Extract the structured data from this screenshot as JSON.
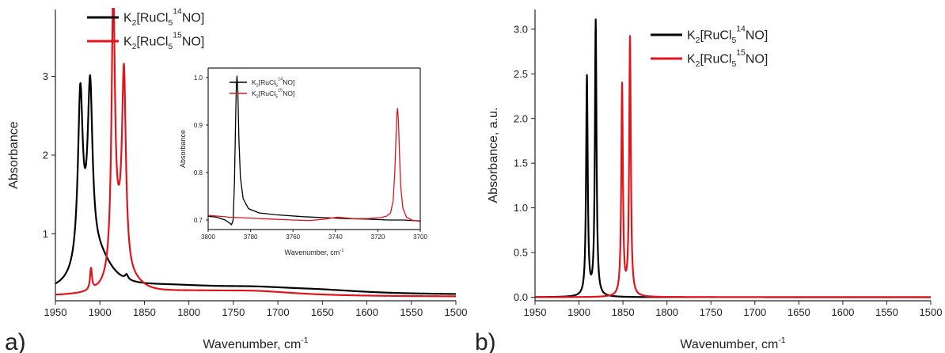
{
  "panels": {
    "a": {
      "label": "a)"
    },
    "b": {
      "label": "b)"
    }
  },
  "colors": {
    "black_series": "#000000",
    "red_series": "#e0141b"
  },
  "chart_data": [
    {
      "id": "a-main",
      "type": "line",
      "title": "",
      "xlabel": "Wavenumber, cm",
      "xlabel_sup": "-1",
      "ylabel": "Absorbance",
      "xlim": [
        1950,
        1500
      ],
      "ylim": [
        0.15,
        3.85
      ],
      "xticks": [
        1950,
        1900,
        1850,
        1800,
        1750,
        1700,
        1650,
        1600,
        1550,
        1500
      ],
      "yticks": [
        1,
        2,
        3
      ],
      "legend": {
        "position": "top-left",
        "entries": [
          {
            "series": 0,
            "parts": [
              [
                "K",
                "n"
              ],
              [
                "2",
                "sub"
              ],
              [
                "[RuCl",
                "n"
              ],
              [
                "5",
                "sub"
              ],
              [
                "14",
                "sup"
              ],
              [
                "NO]",
                "n"
              ]
            ]
          },
          {
            "series": 1,
            "parts": [
              [
                "K",
                "n"
              ],
              [
                "2",
                "sub"
              ],
              [
                "[RuCl",
                "n"
              ],
              [
                "5",
                "sub"
              ],
              [
                "15",
                "sup"
              ],
              [
                "NO]",
                "n"
              ]
            ]
          }
        ]
      },
      "series": [
        {
          "name": "K2[RuCl5 14NO]",
          "color": "#000000",
          "baseline": 0.22,
          "peaks": [
            {
              "x": 1922,
              "h": 2.08,
              "w": 3.2
            },
            {
              "x": 1911,
              "h": 2.05,
              "w": 3.2
            },
            {
              "x": 1916,
              "h": 0.35,
              "w": 12
            },
            {
              "x": 1900,
              "h": 0.32,
              "w": 18
            },
            {
              "x": 1870,
              "h": 0.06,
              "w": 2
            },
            {
              "x": 1825,
              "h": 0.09,
              "w": 80
            },
            {
              "x": 1725,
              "h": 0.06,
              "w": 70
            },
            {
              "x": 1650,
              "h": 0.03,
              "w": 60
            }
          ]
        },
        {
          "name": "K2[RuCl5 15NO]",
          "color": "#e0141b",
          "baseline": 0.2,
          "peaks": [
            {
              "x": 1885,
              "h": 3.42,
              "w": 2.3
            },
            {
              "x": 1873,
              "h": 2.42,
              "w": 2.6
            },
            {
              "x": 1879,
              "h": 0.55,
              "w": 8
            },
            {
              "x": 1910,
              "h": 0.27,
              "w": 1.3
            },
            {
              "x": 1860,
              "h": 0.07,
              "w": 14
            },
            {
              "x": 1800,
              "h": 0.05,
              "w": 70
            },
            {
              "x": 1725,
              "h": 0.05,
              "w": 60
            }
          ]
        }
      ]
    },
    {
      "id": "a-inset",
      "type": "line",
      "title": "",
      "xlabel": "Wavenumber, cm",
      "xlabel_sup": "-1",
      "ylabel": "Absorbance",
      "xlim": [
        3800,
        3700
      ],
      "ylim": [
        0.68,
        1.02
      ],
      "xticks": [
        3800,
        3780,
        3760,
        3740,
        3720,
        3700
      ],
      "yticks": [
        0.7,
        0.8,
        0.9,
        1.0
      ],
      "ytick_labels": [
        "0.7",
        "0.8",
        "0.9",
        "1.0"
      ],
      "legend": {
        "position": "top-left",
        "entries": [
          {
            "series": 0,
            "parts": [
              [
                "K",
                "n"
              ],
              [
                "2",
                "sub"
              ],
              [
                "[RuCl",
                "n"
              ],
              [
                "5",
                "sub"
              ],
              [
                "14",
                "sup"
              ],
              [
                "NO]",
                "n"
              ]
            ]
          },
          {
            "series": 1,
            "parts": [
              [
                "K",
                "n"
              ],
              [
                "2",
                "sub"
              ],
              [
                "[RuCl",
                "n"
              ],
              [
                "5",
                "sub"
              ],
              [
                "15",
                "sup"
              ],
              [
                "NO]",
                "n"
              ]
            ]
          }
        ]
      },
      "series": [
        {
          "name": "K2[RuCl5 14NO]",
          "color": "#000000",
          "points": [
            [
              3800,
              0.708
            ],
            [
              3796,
              0.706
            ],
            [
              3792,
              0.7
            ],
            [
              3790,
              0.694
            ],
            [
              3789,
              0.69
            ],
            [
              3788.2,
              0.7
            ],
            [
              3787.6,
              0.78
            ],
            [
              3787.1,
              0.9
            ],
            [
              3786.7,
              0.985
            ],
            [
              3786.4,
              1.003
            ],
            [
              3786,
              0.97
            ],
            [
              3785.5,
              0.87
            ],
            [
              3784.8,
              0.79
            ],
            [
              3783.5,
              0.745
            ],
            [
              3781,
              0.724
            ],
            [
              3776,
              0.715
            ],
            [
              3768,
              0.711
            ],
            [
              3755,
              0.707
            ],
            [
              3745,
              0.705
            ],
            [
              3735,
              0.703
            ],
            [
              3725,
              0.702
            ],
            [
              3715,
              0.7
            ],
            [
              3708,
              0.7
            ],
            [
              3700,
              0.698
            ]
          ]
        },
        {
          "name": "K2[RuCl5 15NO]",
          "color": "#e0141b",
          "points": [
            [
              3800,
              0.71
            ],
            [
              3790,
              0.706
            ],
            [
              3780,
              0.704
            ],
            [
              3770,
              0.702
            ],
            [
              3760,
              0.7
            ],
            [
              3752,
              0.699
            ],
            [
              3745,
              0.702
            ],
            [
              3739,
              0.706
            ],
            [
              3732,
              0.703
            ],
            [
              3725,
              0.703
            ],
            [
              3719,
              0.705
            ],
            [
              3716,
              0.708
            ],
            [
              3714,
              0.715
            ],
            [
              3712.8,
              0.74
            ],
            [
              3712,
              0.8
            ],
            [
              3711.4,
              0.88
            ],
            [
              3711,
              0.925
            ],
            [
              3710.7,
              0.935
            ],
            [
              3710.3,
              0.91
            ],
            [
              3709.8,
              0.84
            ],
            [
              3709.2,
              0.77
            ],
            [
              3708.2,
              0.725
            ],
            [
              3706.5,
              0.706
            ],
            [
              3704,
              0.7
            ],
            [
              3700,
              0.697
            ]
          ]
        }
      ]
    },
    {
      "id": "b-main",
      "type": "line",
      "title": "",
      "xlabel": "Wavenumber, cm",
      "xlabel_sup": "-1",
      "ylabel": "Absorbance, a.u.",
      "xlim": [
        1950,
        1500
      ],
      "ylim": [
        -0.04,
        3.22
      ],
      "xticks": [
        1950,
        1900,
        1850,
        1800,
        1750,
        1700,
        1650,
        1600,
        1550,
        1500
      ],
      "yticks": [
        0.0,
        0.5,
        1.0,
        1.5,
        2.0,
        2.5,
        3.0
      ],
      "ytick_labels": [
        "0.0",
        "0.5",
        "1.0",
        "1.5",
        "2.0",
        "2.5",
        "3.0"
      ],
      "legend": {
        "position": "top-center",
        "entries": [
          {
            "series": 0,
            "parts": [
              [
                "K",
                "n"
              ],
              [
                "2",
                "sub"
              ],
              [
                "[RuCl",
                "n"
              ],
              [
                "5",
                "sub"
              ],
              [
                "14",
                "sup"
              ],
              [
                "NO]",
                "n"
              ]
            ]
          },
          {
            "series": 1,
            "parts": [
              [
                "K",
                "n"
              ],
              [
                "2",
                "sub"
              ],
              [
                "[RuCl",
                "n"
              ],
              [
                "5",
                "sub"
              ],
              [
                "15",
                "sup"
              ],
              [
                "NO]",
                "n"
              ]
            ]
          }
        ]
      },
      "series": [
        {
          "name": "K2[RuCl5 14NO]",
          "color": "#000000",
          "baseline": 0,
          "peaks": [
            {
              "x": 1891,
              "h": 2.45,
              "w": 1.1
            },
            {
              "x": 1881,
              "h": 3.08,
              "w": 1.1
            }
          ]
        },
        {
          "name": "K2[RuCl5 15NO]",
          "color": "#e0141b",
          "baseline": 0,
          "peaks": [
            {
              "x": 1851,
              "h": 2.36,
              "w": 1.1
            },
            {
              "x": 1842,
              "h": 2.89,
              "w": 1.1
            }
          ]
        }
      ]
    }
  ]
}
